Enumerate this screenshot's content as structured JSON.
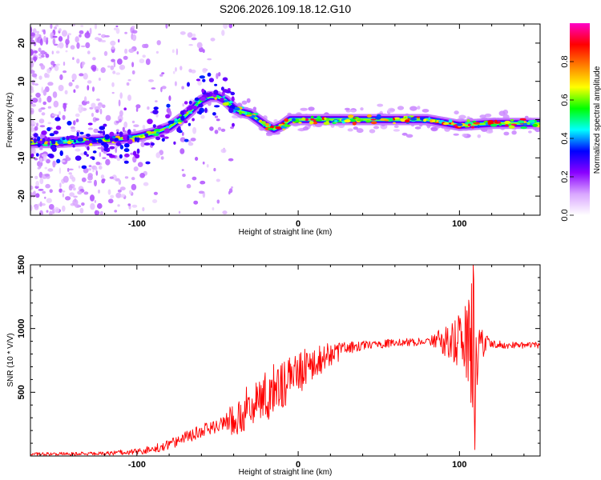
{
  "title": "S206.2026.109.18.12.G10",
  "chart_data": [
    {
      "type": "heatmap",
      "name": "spectrogram",
      "xlabel": "Height of straight line (km)",
      "ylabel": "Frequency (Hz)",
      "xlim": [
        -166,
        150
      ],
      "ylim": [
        -25,
        25
      ],
      "xticks": [
        -100,
        0,
        100
      ],
      "yticks": [
        -20,
        -10,
        0,
        10,
        20
      ],
      "colorbar": {
        "label": "Normalized spectral amplitude",
        "range": [
          0,
          1
        ],
        "ticks": [
          0.0,
          0.2,
          0.4,
          0.6,
          0.8
        ],
        "colormap": [
          "#ffffff",
          "#d9a6ff",
          "#8a00ff",
          "#0000ff",
          "#00ffff",
          "#00ff00",
          "#ffff00",
          "#ff8000",
          "#ff0000",
          "#ff00c8"
        ]
      },
      "ridge": {
        "x": [
          -166,
          -150,
          -130,
          -110,
          -100,
          -90,
          -80,
          -70,
          -60,
          -55,
          -50,
          -45,
          -40,
          -35,
          -30,
          -25,
          -20,
          -15,
          -10,
          -5,
          0,
          10,
          20,
          40,
          60,
          80,
          100,
          120,
          140,
          150
        ],
        "y": [
          -6,
          -6,
          -5.5,
          -5,
          -4.5,
          -3.5,
          -2,
          1,
          5,
          6,
          6,
          5,
          3,
          2,
          1.5,
          0,
          -1.5,
          -2.5,
          -1.5,
          0,
          0,
          0,
          0,
          0,
          0,
          0,
          -1.5,
          -1,
          -1,
          -1
        ]
      }
    },
    {
      "type": "line",
      "name": "snr",
      "xlabel": "Height of straight line (km)",
      "ylabel": "SNR (10 * V/V)",
      "xlim": [
        -166,
        150
      ],
      "ylim": [
        0,
        1500
      ],
      "xticks": [
        -100,
        0,
        100
      ],
      "yticks": [
        500,
        1000,
        1500
      ],
      "color": "#ff0000",
      "envelope": {
        "x": [
          -166,
          -120,
          -100,
          -90,
          -80,
          -70,
          -60,
          -50,
          -40,
          -30,
          -20,
          -10,
          0,
          10,
          20,
          30,
          40,
          60,
          80,
          90,
          100,
          105,
          110,
          120,
          130,
          150
        ],
        "y": [
          15,
          20,
          35,
          55,
          90,
          140,
          190,
          240,
          300,
          380,
          470,
          560,
          650,
          730,
          790,
          840,
          870,
          885,
          900,
          895,
          910,
          900,
          890,
          880,
          870,
          870
        ]
      },
      "noise": {
        "x": [
          -166,
          -120,
          -100,
          -80,
          -60,
          -45,
          -40,
          -20,
          0,
          20,
          30,
          40,
          80,
          85,
          95,
          100,
          105,
          108,
          110,
          112,
          120,
          150
        ],
        "amp": [
          12,
          15,
          25,
          40,
          60,
          50,
          150,
          220,
          170,
          100,
          55,
          35,
          30,
          80,
          150,
          220,
          320,
          550,
          650,
          150,
          30,
          25
        ]
      },
      "n_samples": 900
    }
  ]
}
